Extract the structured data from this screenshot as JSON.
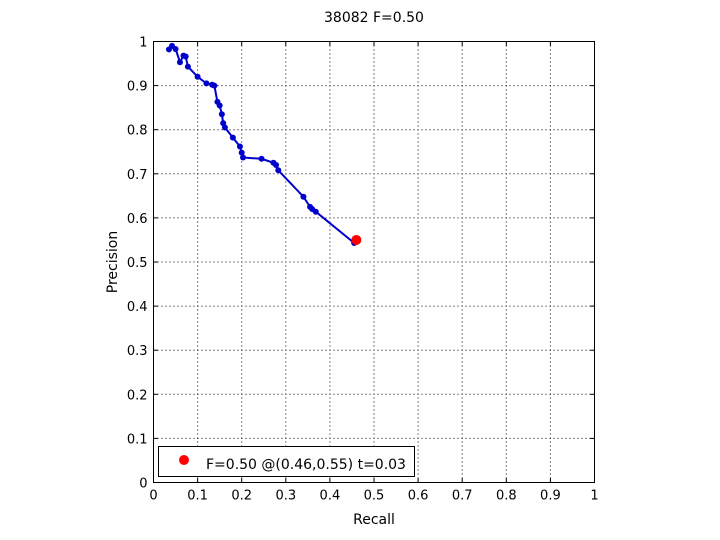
{
  "chart_data": {
    "type": "line",
    "title": "38082 F=0.50",
    "xlabel": "Recall",
    "ylabel": "Precision",
    "xlim": [
      0,
      1
    ],
    "ylim": [
      0,
      1
    ],
    "xticks": [
      "0",
      "0.1",
      "0.2",
      "0.3",
      "0.4",
      "0.5",
      "0.6",
      "0.7",
      "0.8",
      "0.9",
      "1"
    ],
    "yticks": [
      "0",
      "0.1",
      "0.2",
      "0.3",
      "0.4",
      "0.5",
      "0.6",
      "0.7",
      "0.8",
      "0.9",
      "1"
    ],
    "grid": true,
    "legend_position": "bottom-left",
    "series": [
      {
        "color": "#0000cc",
        "points": [
          [
            0.035,
            0.982
          ],
          [
            0.042,
            0.99
          ],
          [
            0.05,
            0.983
          ],
          [
            0.06,
            0.953
          ],
          [
            0.068,
            0.968
          ],
          [
            0.073,
            0.966
          ],
          [
            0.078,
            0.943
          ],
          [
            0.1,
            0.92
          ],
          [
            0.12,
            0.905
          ],
          [
            0.133,
            0.902
          ],
          [
            0.138,
            0.9
          ],
          [
            0.145,
            0.863
          ],
          [
            0.15,
            0.855
          ],
          [
            0.155,
            0.835
          ],
          [
            0.158,
            0.815
          ],
          [
            0.162,
            0.805
          ],
          [
            0.18,
            0.782
          ],
          [
            0.196,
            0.762
          ],
          [
            0.2,
            0.748
          ],
          [
            0.203,
            0.737
          ],
          [
            0.245,
            0.734
          ],
          [
            0.272,
            0.725
          ],
          [
            0.278,
            0.72
          ],
          [
            0.283,
            0.708
          ],
          [
            0.34,
            0.648
          ],
          [
            0.355,
            0.625
          ],
          [
            0.36,
            0.62
          ],
          [
            0.368,
            0.614
          ],
          [
            0.455,
            0.543
          ]
        ]
      }
    ],
    "highlight": {
      "x": 0.46,
      "y": 0.55,
      "color": "#ff0000"
    },
    "legend": {
      "text": "F=0.50 @(0.46,0.55) t=0.03"
    }
  }
}
